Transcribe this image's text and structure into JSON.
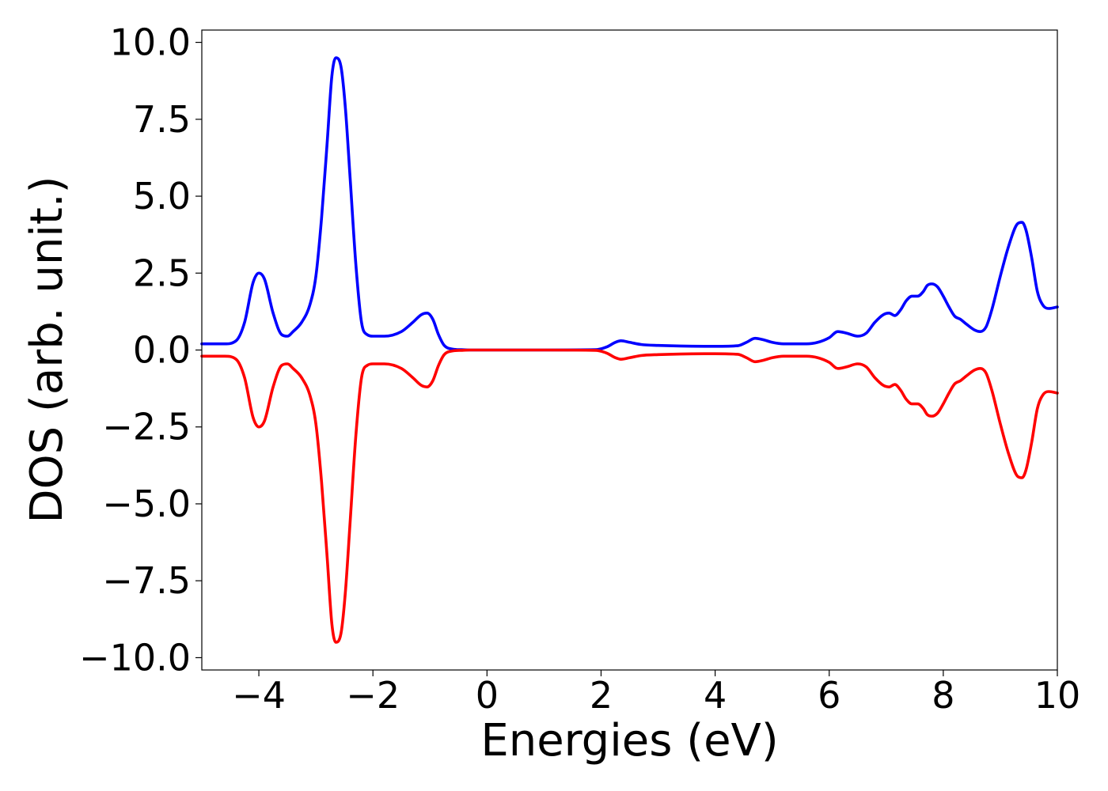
{
  "chart_data": {
    "type": "line",
    "title": "",
    "xlabel": "Energies (eV)",
    "ylabel": "DOS (arb. unit.)",
    "xlim": [
      -5,
      10
    ],
    "ylim": [
      -10.4,
      10.4
    ],
    "xticks": [
      -4,
      -2,
      0,
      2,
      4,
      6,
      8,
      10
    ],
    "xtick_labels": [
      "−4",
      "−2",
      "0",
      "2",
      "4",
      "6",
      "8",
      "10"
    ],
    "yticks": [
      10,
      7.5,
      5,
      2.5,
      0,
      -2.5,
      -5,
      -7.5,
      -10
    ],
    "ytick_labels": [
      "10.0",
      "7.5",
      "5.0",
      "2.5",
      "0.0",
      "−2.5",
      "−5.0",
      "−7.5",
      "−10.0"
    ],
    "grid": false,
    "series": [
      {
        "color": "#0000ff",
        "x": [
          -5,
          -4.6,
          -4.4,
          -4.25,
          -4.1,
          -4.0,
          -3.9,
          -3.75,
          -3.6,
          -3.5,
          -3.4,
          -3.25,
          -3.1,
          -3.0,
          -2.9,
          -2.8,
          -2.72,
          -2.65,
          -2.6,
          -2.55,
          -2.48,
          -2.4,
          -2.3,
          -2.2,
          -2.1,
          -2.0,
          -1.8,
          -1.5,
          -1.3,
          -1.15,
          -1.05,
          -0.95,
          -0.85,
          -0.75,
          -0.6,
          -0.45,
          -0.3,
          0,
          1.0,
          1.9,
          2.1,
          2.25,
          2.35,
          2.5,
          2.7,
          3.0,
          4.0,
          4.4,
          4.55,
          4.7,
          4.85,
          5.0,
          5.2,
          5.6,
          5.8,
          6.0,
          6.15,
          6.3,
          6.5,
          6.65,
          6.8,
          6.95,
          7.05,
          7.15,
          7.25,
          7.35,
          7.45,
          7.55,
          7.65,
          7.72,
          7.8,
          7.9,
          8.0,
          8.1,
          8.2,
          8.3,
          8.4,
          8.55,
          8.65,
          8.75,
          8.85,
          9.0,
          9.15,
          9.3,
          9.38,
          9.45,
          9.55,
          9.65,
          9.75,
          9.85,
          10.0
        ],
        "values": [
          0.2,
          0.2,
          0.3,
          0.9,
          2.2,
          2.5,
          2.3,
          1.2,
          0.5,
          0.45,
          0.6,
          0.9,
          1.5,
          2.4,
          4.3,
          6.8,
          8.9,
          9.5,
          9.45,
          9.1,
          7.8,
          5.6,
          2.8,
          0.9,
          0.5,
          0.45,
          0.45,
          0.6,
          0.9,
          1.15,
          1.2,
          1.0,
          0.5,
          0.15,
          0.03,
          0.01,
          0.0,
          0.0,
          0.0,
          0.01,
          0.1,
          0.25,
          0.3,
          0.25,
          0.18,
          0.15,
          0.12,
          0.14,
          0.25,
          0.38,
          0.33,
          0.25,
          0.2,
          0.2,
          0.25,
          0.4,
          0.6,
          0.55,
          0.45,
          0.55,
          0.9,
          1.15,
          1.2,
          1.12,
          1.3,
          1.6,
          1.75,
          1.75,
          1.9,
          2.1,
          2.15,
          2.05,
          1.75,
          1.4,
          1.1,
          1.0,
          0.85,
          0.65,
          0.6,
          0.75,
          1.3,
          2.4,
          3.4,
          4.1,
          4.15,
          3.9,
          3.0,
          1.9,
          1.45,
          1.35,
          1.4
        ]
      },
      {
        "color": "#ff0000",
        "x": [
          -5,
          -4.6,
          -4.4,
          -4.25,
          -4.1,
          -4.0,
          -3.9,
          -3.75,
          -3.6,
          -3.5,
          -3.4,
          -3.25,
          -3.1,
          -3.0,
          -2.9,
          -2.8,
          -2.72,
          -2.65,
          -2.6,
          -2.55,
          -2.48,
          -2.4,
          -2.3,
          -2.2,
          -2.1,
          -2.0,
          -1.8,
          -1.5,
          -1.3,
          -1.15,
          -1.05,
          -0.95,
          -0.85,
          -0.75,
          -0.6,
          -0.45,
          -0.3,
          0,
          1.0,
          1.9,
          2.1,
          2.25,
          2.35,
          2.5,
          2.7,
          3.0,
          4.0,
          4.4,
          4.55,
          4.7,
          4.85,
          5.0,
          5.2,
          5.6,
          5.8,
          6.0,
          6.15,
          6.3,
          6.5,
          6.65,
          6.8,
          6.95,
          7.05,
          7.15,
          7.25,
          7.35,
          7.45,
          7.55,
          7.65,
          7.72,
          7.8,
          7.9,
          8.0,
          8.1,
          8.2,
          8.3,
          8.4,
          8.55,
          8.65,
          8.75,
          8.85,
          9.0,
          9.15,
          9.3,
          9.38,
          9.45,
          9.55,
          9.65,
          9.75,
          9.85,
          10.0
        ],
        "values": [
          -0.2,
          -0.2,
          -0.3,
          -0.9,
          -2.2,
          -2.5,
          -2.3,
          -1.2,
          -0.5,
          -0.45,
          -0.6,
          -0.9,
          -1.5,
          -2.4,
          -4.3,
          -6.8,
          -8.9,
          -9.5,
          -9.45,
          -9.1,
          -7.8,
          -5.6,
          -2.8,
          -0.9,
          -0.5,
          -0.45,
          -0.45,
          -0.6,
          -0.9,
          -1.15,
          -1.2,
          -1.0,
          -0.5,
          -0.15,
          -0.03,
          -0.01,
          0.0,
          0.0,
          0.0,
          -0.01,
          -0.1,
          -0.25,
          -0.3,
          -0.25,
          -0.18,
          -0.15,
          -0.12,
          -0.14,
          -0.25,
          -0.38,
          -0.33,
          -0.25,
          -0.2,
          -0.2,
          -0.25,
          -0.4,
          -0.6,
          -0.55,
          -0.45,
          -0.55,
          -0.9,
          -1.15,
          -1.2,
          -1.12,
          -1.3,
          -1.6,
          -1.75,
          -1.75,
          -1.9,
          -2.1,
          -2.15,
          -2.05,
          -1.75,
          -1.4,
          -1.1,
          -1.0,
          -0.85,
          -0.65,
          -0.6,
          -0.75,
          -1.3,
          -2.4,
          -3.4,
          -4.1,
          -4.15,
          -3.9,
          -3.0,
          -1.9,
          -1.45,
          -1.35,
          -1.4
        ]
      }
    ]
  }
}
